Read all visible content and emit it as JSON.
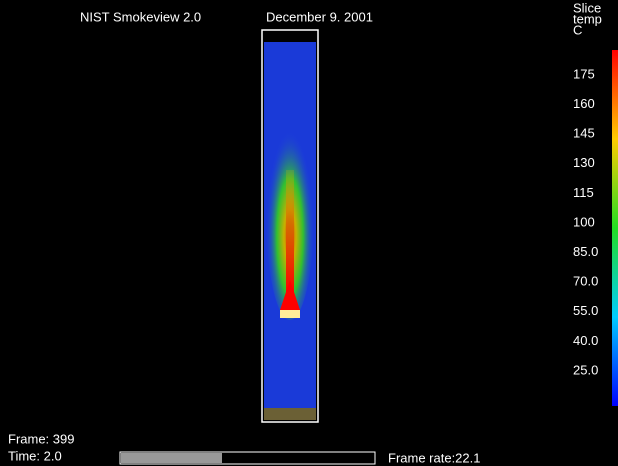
{
  "header": {
    "app": "NIST Smokeview 2.0",
    "date": "December 9. 2001"
  },
  "colorbar": {
    "title": [
      "Slice",
      "temp",
      "C"
    ],
    "labels": [
      "175",
      "160",
      "145",
      "130",
      "115",
      "100",
      "85.0",
      "70.0",
      "55.0",
      "40.0",
      "25.0"
    ]
  },
  "status": {
    "frame": "Frame: 399",
    "time": "Time:  2.0",
    "frame_rate": "Frame rate:22.1"
  }
}
